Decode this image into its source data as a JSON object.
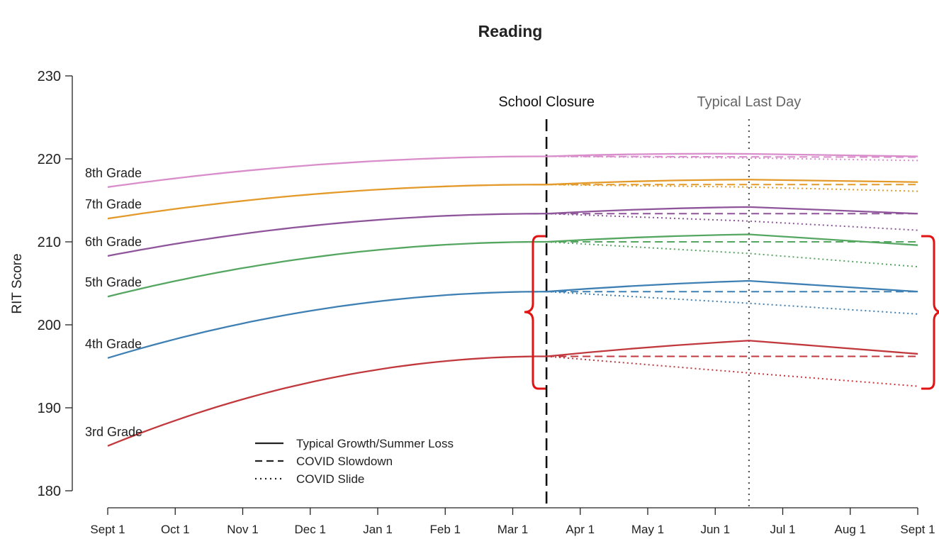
{
  "chart_data": {
    "type": "line",
    "title": "Reading",
    "ylabel": "RIT Score",
    "xlabel": "",
    "ylim": [
      180,
      230
    ],
    "yticks": [
      180,
      190,
      200,
      210,
      220,
      230
    ],
    "x_labels": [
      "Sept 1",
      "Oct 1",
      "Nov 1",
      "Dec 1",
      "Jan 1",
      "Feb 1",
      "Mar 1",
      "Apr 1",
      "May 1",
      "Jun 1",
      "Jul 1",
      "Aug 1",
      "Sept 1"
    ],
    "x_range": [
      0,
      12
    ],
    "grid": false,
    "legend_position": "bottom-left",
    "annotations": [
      {
        "text": "School Closure",
        "x": 6.5,
        "style": "dashed",
        "color": "#111111"
      },
      {
        "text": "Typical Last Day",
        "x": 9.5,
        "style": "dotted",
        "color": "#555555"
      }
    ],
    "legend": [
      {
        "label": "Typical Growth/Summer Loss",
        "style": "solid"
      },
      {
        "label": "COVID Slowdown",
        "style": "dashed"
      },
      {
        "label": "COVID Slide",
        "style": "dotted"
      }
    ],
    "series": [
      {
        "name": "8th Grade",
        "color": "#d98ecb",
        "start": 216.6,
        "closure": 220.3,
        "lastday": 220.6,
        "end": 220.3,
        "slowdown_end": 220.2,
        "slide_lastday": 220.1,
        "slide_end": 219.8
      },
      {
        "name": "7th Grade",
        "color": "#e39a2a",
        "start": 212.8,
        "closure": 216.9,
        "lastday": 217.5,
        "end": 217.2,
        "slowdown_end": 216.9,
        "slide_lastday": 216.6,
        "slide_end": 216.1
      },
      {
        "name": "6th Grade",
        "color": "#8f559b",
        "start": 208.3,
        "closure": 213.4,
        "lastday": 214.2,
        "end": 213.4,
        "slowdown_end": 213.4,
        "slide_lastday": 212.5,
        "slide_end": 211.4
      },
      {
        "name": "5th Grade",
        "color": "#55a661",
        "start": 203.4,
        "closure": 210.0,
        "lastday": 210.9,
        "end": 209.6,
        "slowdown_end": 210.0,
        "slide_lastday": 208.6,
        "slide_end": 207.0
      },
      {
        "name": "4th Grade",
        "color": "#3f80b4",
        "start": 196.0,
        "closure": 204.0,
        "lastday": 205.3,
        "end": 204.0,
        "slowdown_end": 204.0,
        "slide_lastday": 202.6,
        "slide_end": 201.3
      },
      {
        "name": "3rd Grade",
        "color": "#c1383d",
        "start": 185.4,
        "closure": 196.2,
        "lastday": 198.1,
        "end": 196.5,
        "slowdown_end": 196.2,
        "slide_lastday": 194.2,
        "slide_end": 192.6
      }
    ]
  }
}
